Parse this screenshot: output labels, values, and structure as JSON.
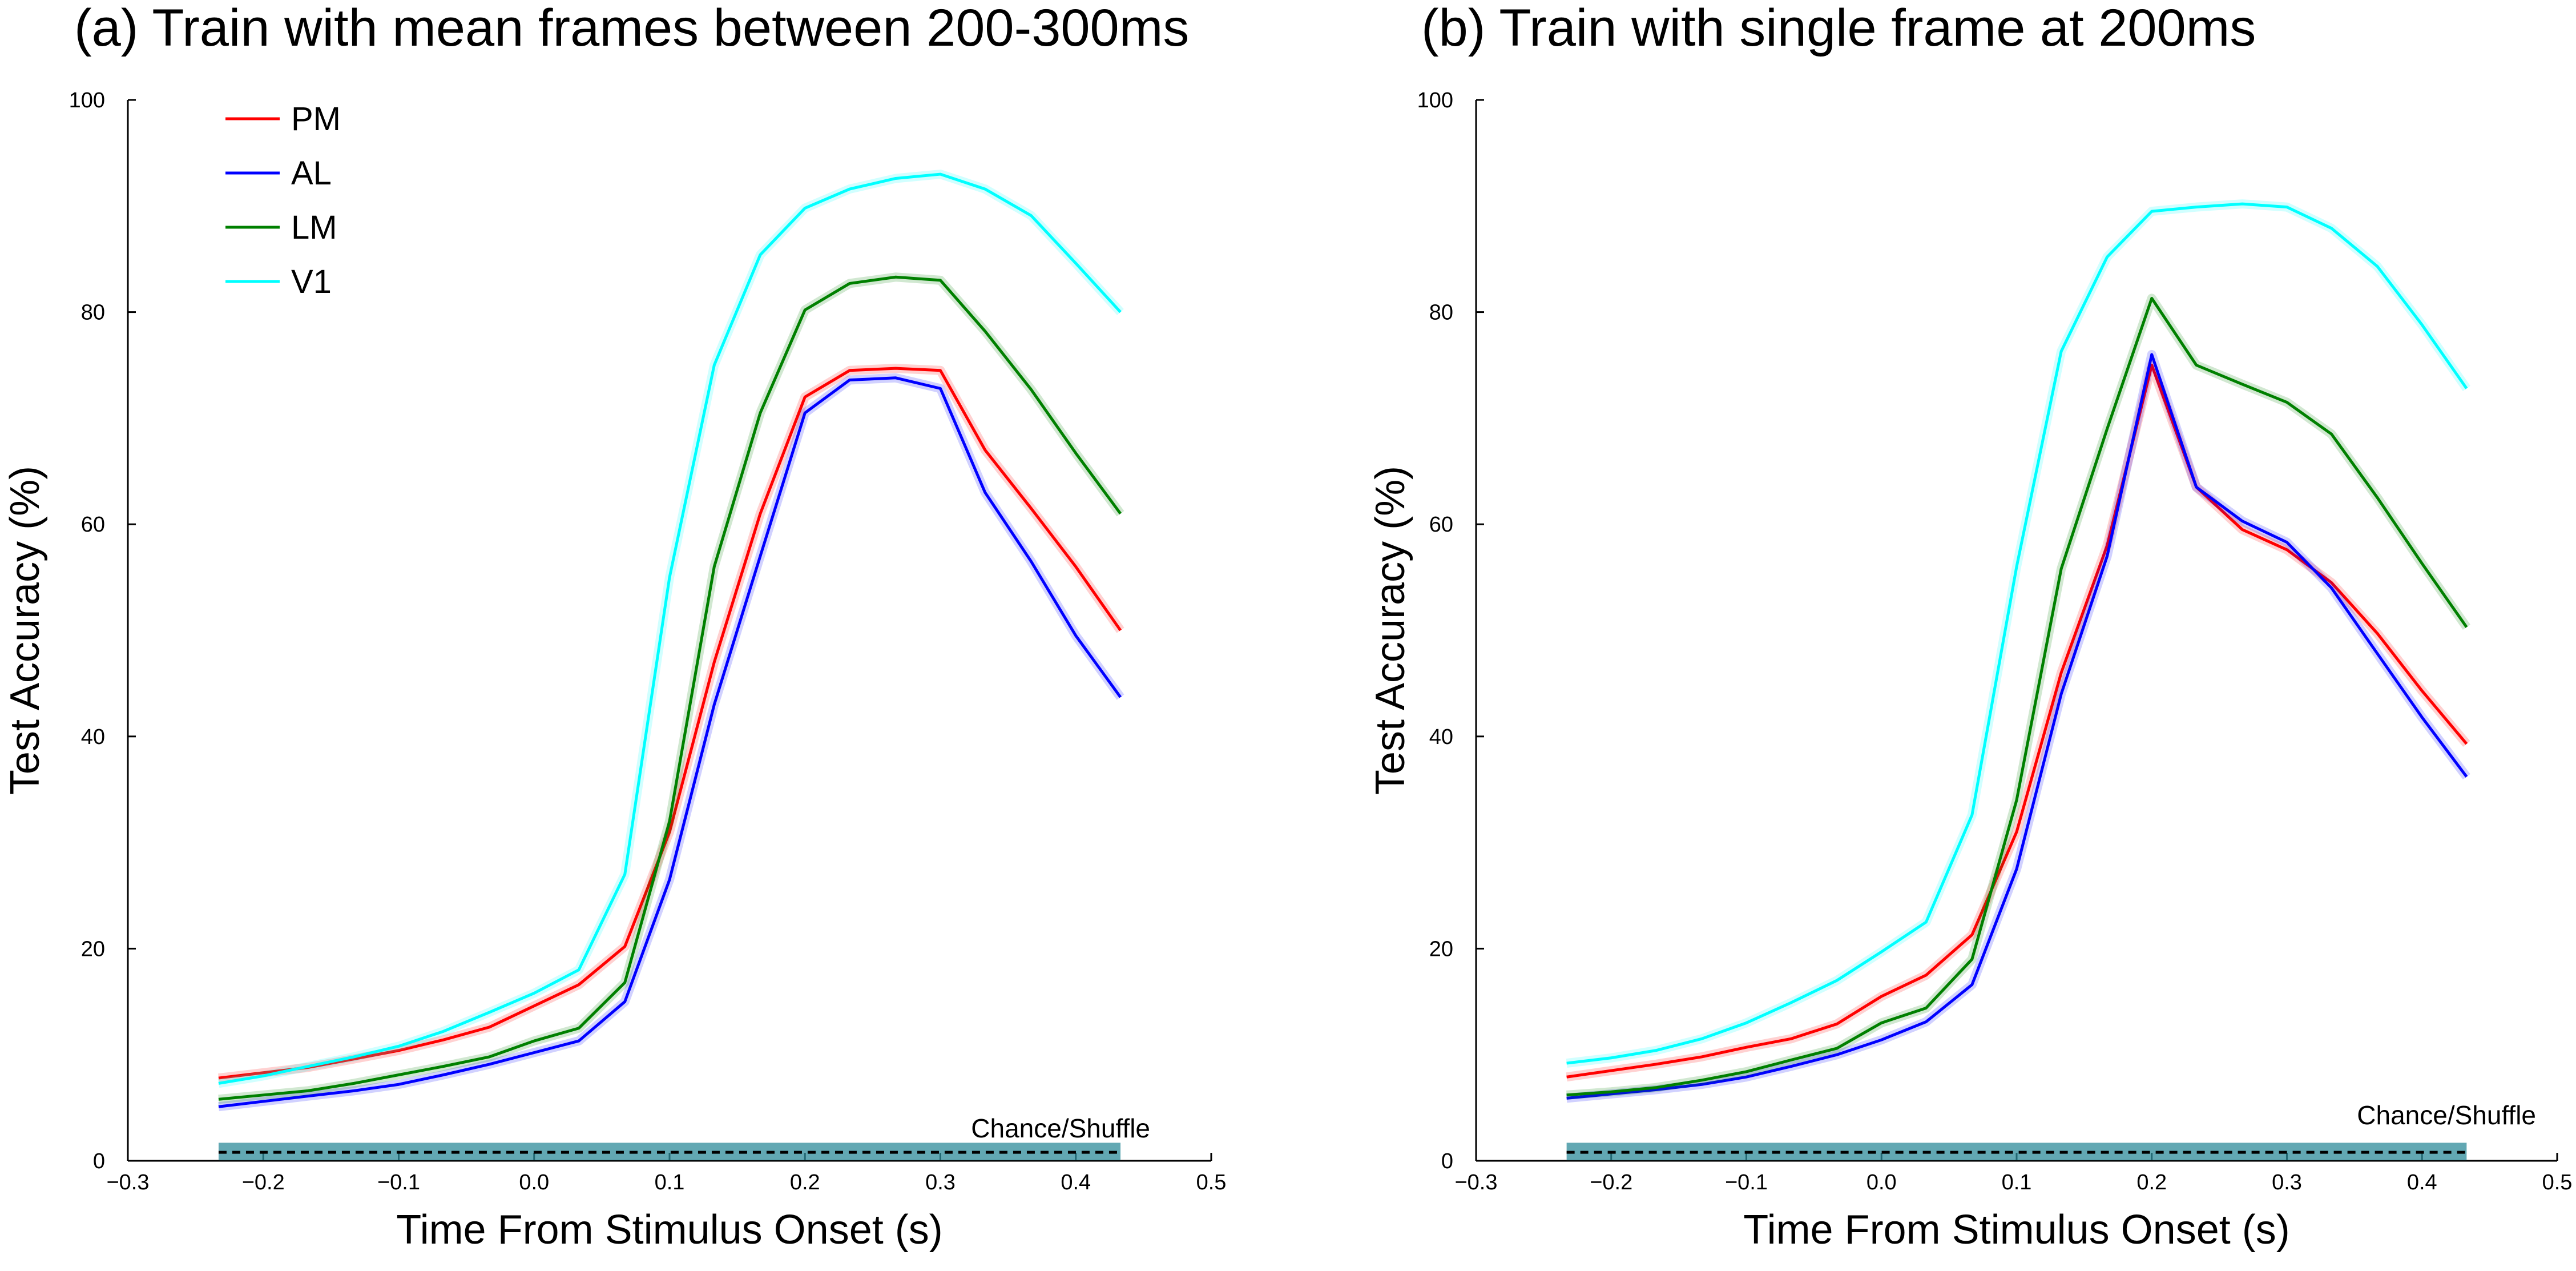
{
  "chart_data": [
    {
      "type": "line",
      "title": "(a) Train with mean frames between 200-300ms",
      "xlabel": "Time From Stimulus Onset (s)",
      "ylabel": "Test Accuracy (%)",
      "xlim": [
        -0.3,
        0.5
      ],
      "ylim": [
        0,
        100
      ],
      "xticks": [
        "−0.3",
        "−0.2",
        "−0.1",
        "0.0",
        "0.1",
        "0.2",
        "0.3",
        "0.4",
        "0.5"
      ],
      "yticks": [
        "0",
        "20",
        "40",
        "60",
        "80",
        "100"
      ],
      "grid": false,
      "legend_position": "top-left",
      "annotation": "Chance/Shuffle",
      "x": [
        -0.233,
        -0.2,
        -0.167,
        -0.133,
        -0.1,
        -0.067,
        -0.033,
        0.0,
        0.033,
        0.067,
        0.1,
        0.133,
        0.167,
        0.2,
        0.233,
        0.267,
        0.3,
        0.333,
        0.367,
        0.4,
        0.433
      ],
      "series": [
        {
          "name": "PM",
          "color": "#ff0000",
          "values": [
            7.8,
            8.3,
            8.8,
            9.6,
            10.4,
            11.4,
            12.6,
            14.6,
            16.6,
            20.2,
            31.0,
            47.0,
            61.0,
            72.0,
            74.5,
            74.7,
            74.5,
            67.0,
            61.5,
            56.0,
            50.0
          ]
        },
        {
          "name": "AL",
          "color": "#0000ff",
          "values": [
            5.1,
            5.6,
            6.1,
            6.6,
            7.2,
            8.1,
            9.1,
            10.2,
            11.3,
            15.0,
            26.5,
            43.0,
            57.0,
            70.5,
            73.6,
            73.8,
            72.8,
            63.0,
            56.5,
            49.5,
            43.7
          ]
        },
        {
          "name": "LM",
          "color": "#008000",
          "values": [
            5.8,
            6.2,
            6.6,
            7.3,
            8.1,
            8.9,
            9.8,
            11.3,
            12.5,
            16.8,
            32.0,
            56.0,
            70.5,
            80.2,
            82.7,
            83.3,
            83.0,
            78.2,
            72.7,
            66.7,
            61.0
          ]
        },
        {
          "name": "V1",
          "color": "#00ffff",
          "values": [
            7.3,
            8.0,
            8.9,
            9.8,
            10.8,
            12.2,
            14.0,
            15.8,
            18.0,
            27.0,
            55.0,
            75.0,
            85.4,
            89.8,
            91.6,
            92.6,
            93.0,
            91.6,
            89.1,
            84.6,
            80.0
          ]
        },
        {
          "name": "Chance/Shuffle",
          "color": "#000000",
          "values": [
            0.8,
            0.8,
            0.8,
            0.8,
            0.8,
            0.8,
            0.8,
            0.8,
            0.8,
            0.8,
            0.8,
            0.8,
            0.8,
            0.8,
            0.8,
            0.8,
            0.8,
            0.8,
            0.8,
            0.8,
            0.8
          ]
        }
      ]
    },
    {
      "type": "line",
      "title": "(b) Train with single frame at 200ms",
      "xlabel": "Time From Stimulus Onset (s)",
      "ylabel": "Test Accuracy (%)",
      "xlim": [
        -0.3,
        0.5
      ],
      "ylim": [
        0,
        100
      ],
      "xticks": [
        "−0.3",
        "−0.2",
        "−0.1",
        "0.0",
        "0.1",
        "0.2",
        "0.3",
        "0.4",
        "0.5"
      ],
      "yticks": [
        "0",
        "20",
        "40",
        "60",
        "80",
        "100"
      ],
      "grid": false,
      "annotation": "Chance/Shuffle",
      "x": [
        -0.233,
        -0.2,
        -0.167,
        -0.133,
        -0.1,
        -0.067,
        -0.033,
        0.0,
        0.033,
        0.067,
        0.1,
        0.133,
        0.167,
        0.2,
        0.233,
        0.267,
        0.3,
        0.333,
        0.367,
        0.4,
        0.433
      ],
      "series": [
        {
          "name": "PM",
          "color": "#ff0000",
          "values": [
            7.9,
            8.5,
            9.1,
            9.8,
            10.7,
            11.5,
            12.9,
            15.5,
            17.5,
            21.3,
            31.0,
            46.0,
            58.0,
            75.0,
            63.5,
            59.5,
            57.6,
            54.5,
            49.7,
            44.3,
            39.3
          ]
        },
        {
          "name": "AL",
          "color": "#0000ff",
          "values": [
            5.9,
            6.3,
            6.7,
            7.2,
            7.9,
            8.9,
            10.0,
            11.4,
            13.1,
            16.6,
            27.5,
            44.0,
            57.0,
            76.0,
            63.5,
            60.3,
            58.3,
            54.0,
            47.8,
            41.8,
            36.2
          ]
        },
        {
          "name": "LM",
          "color": "#008000",
          "values": [
            6.2,
            6.5,
            6.9,
            7.6,
            8.4,
            9.5,
            10.6,
            13.0,
            14.4,
            19.0,
            34.0,
            55.8,
            69.0,
            81.3,
            75.0,
            73.2,
            71.5,
            68.5,
            62.5,
            56.3,
            50.3
          ]
        },
        {
          "name": "V1",
          "color": "#00ffff",
          "values": [
            9.2,
            9.7,
            10.4,
            11.5,
            13.0,
            14.9,
            17.0,
            19.7,
            22.5,
            32.6,
            56.0,
            76.3,
            85.2,
            89.5,
            89.9,
            90.2,
            89.9,
            87.9,
            84.3,
            78.8,
            72.8
          ]
        },
        {
          "name": "Chance/Shuffle",
          "color": "#000000",
          "values": [
            0.8,
            0.8,
            0.8,
            0.8,
            0.8,
            0.8,
            0.8,
            0.8,
            0.8,
            0.8,
            0.8,
            0.8,
            0.8,
            0.8,
            0.8,
            0.8,
            0.8,
            0.8,
            0.8,
            0.8,
            0.8
          ]
        }
      ]
    }
  ]
}
